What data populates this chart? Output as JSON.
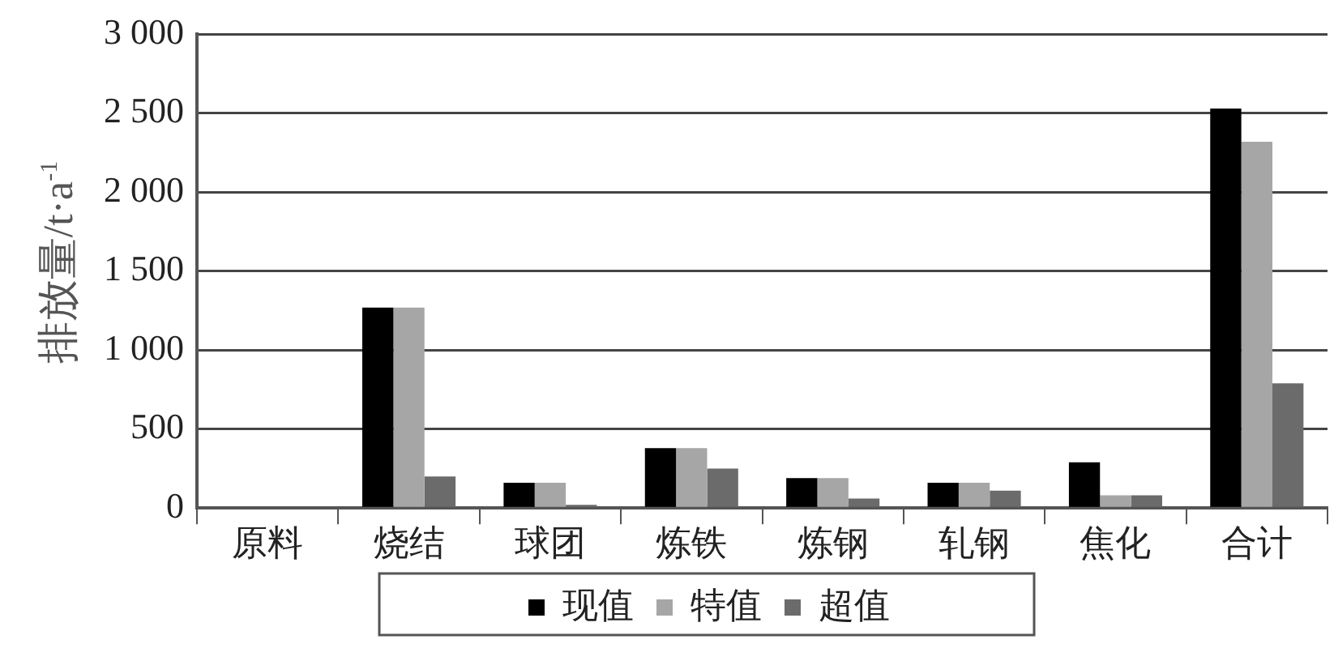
{
  "chart_data": {
    "type": "bar",
    "ylabel": "排放量/t·a$^{-1}$",
    "categories": [
      "原料",
      "烧结",
      "球团",
      "炼铁",
      "炼钢",
      "轧钢",
      "焦化",
      "合计"
    ],
    "series": [
      {
        "name": "现值",
        "color": "#000000",
        "values": [
          0,
          1270,
          160,
          380,
          190,
          160,
          290,
          2530
        ]
      },
      {
        "name": "特值",
        "color": "#a6a6a6",
        "values": [
          0,
          1270,
          160,
          380,
          190,
          160,
          80,
          2320
        ]
      },
      {
        "name": "超值",
        "color": "#6b6b6b",
        "values": [
          0,
          200,
          20,
          250,
          60,
          110,
          80,
          790
        ]
      }
    ],
    "ylim": [
      0,
      3000
    ],
    "yticks": [
      0,
      500,
      {
        "value": 1000,
        "label": "1 000"
      },
      {
        "value": 1500,
        "label": "1 500"
      },
      {
        "value": 2000,
        "label": "2 000"
      },
      {
        "value": 2500,
        "label": "2 500"
      },
      {
        "value": 3000,
        "label": "3 000"
      }
    ],
    "grid": "y",
    "legend": "bottom"
  }
}
